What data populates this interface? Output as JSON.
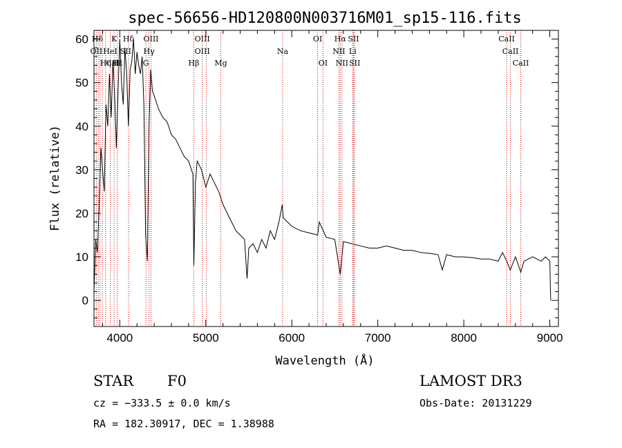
{
  "chart_data": {
    "type": "line",
    "title": "spec-56656-HD120800N003716M01_sp15-116.fits",
    "xlabel": "Wavelength (Å)",
    "ylabel": "Flux (relative)",
    "xlim": [
      3700,
      9100
    ],
    "ylim": [
      -6,
      62
    ],
    "x_ticks": [
      4000,
      5000,
      6000,
      7000,
      8000,
      9000
    ],
    "y_ticks": [
      0,
      10,
      20,
      30,
      40,
      50,
      60
    ],
    "grid": false,
    "line_color": "#000000",
    "marker_color": "#cc0000",
    "series": [
      {
        "x": [
          3700,
          3720,
          3740,
          3760,
          3780,
          3800,
          3820,
          3840,
          3860,
          3880,
          3900,
          3920,
          3940,
          3960,
          3980,
          4000,
          4020,
          4040,
          4060,
          4080,
          4100,
          4120,
          4140,
          4160,
          4180,
          4200,
          4220,
          4240,
          4260,
          4280,
          4300,
          4320,
          4340,
          4360,
          4380,
          4400,
          4450,
          4500,
          4550,
          4600,
          4650,
          4700,
          4750,
          4800,
          4850,
          4861,
          4880,
          4900,
          4950,
          5000,
          5050,
          5100,
          5150,
          5200,
          5250,
          5300,
          5350,
          5400,
          5450,
          5480,
          5500,
          5550,
          5600,
          5650,
          5700,
          5750,
          5800,
          5850,
          5890,
          5900,
          5950,
          6000,
          6100,
          6200,
          6300,
          6320,
          6400,
          6500,
          6563,
          6600,
          6700,
          6800,
          6900,
          7000,
          7100,
          7200,
          7300,
          7400,
          7500,
          7600,
          7700,
          7750,
          7800,
          7900,
          8000,
          8100,
          8200,
          8300,
          8400,
          8450,
          8500,
          8540,
          8600,
          8662,
          8700,
          8800,
          8900,
          8950,
          9000,
          9010
        ],
        "y": [
          2,
          14,
          11,
          22,
          35,
          30,
          25,
          45,
          40,
          52,
          42,
          55,
          47,
          35,
          48,
          60,
          50,
          45,
          58,
          52,
          40,
          53,
          55,
          60,
          52,
          57,
          54,
          52,
          56,
          45,
          15,
          9,
          40,
          53,
          48,
          47,
          44,
          42,
          41,
          38,
          37,
          35,
          33,
          32,
          29,
          8,
          27,
          32,
          30,
          26,
          29,
          27,
          25,
          22,
          20,
          18,
          16,
          15,
          14,
          5,
          12,
          13,
          11,
          14,
          12,
          16,
          14,
          18,
          22,
          19,
          18,
          17,
          16,
          15.5,
          15,
          18,
          14.5,
          14,
          6,
          13.5,
          13,
          12.5,
          12,
          12,
          12.5,
          12,
          11.5,
          11.5,
          11,
          10.8,
          10.5,
          7,
          10.5,
          10,
          10,
          9.8,
          9.5,
          9.5,
          9,
          11,
          9,
          7,
          10,
          6.5,
          9,
          10,
          9,
          10,
          9,
          0
        ]
      }
    ],
    "line_markers": [
      {
        "label": "Hδ",
        "x": 3740,
        "row": 0
      },
      {
        "label": "K",
        "x": 3934,
        "row": 0
      },
      {
        "label": "Hδ",
        "x": 4102,
        "row": 0
      },
      {
        "label": "OIII",
        "x": 4363,
        "row": 0
      },
      {
        "label": "OIII",
        "x": 4959,
        "row": 0
      },
      {
        "label": "OI",
        "x": 6300,
        "row": 0
      },
      {
        "label": "Hα",
        "x": 6563,
        "row": 0
      },
      {
        "label": "SII",
        "x": 6717,
        "row": 0
      },
      {
        "label": "CaII",
        "x": 8498,
        "row": 0
      },
      {
        "label": "OII",
        "x": 3727,
        "row": 1
      },
      {
        "label": "HeI",
        "x": 3889,
        "row": 1
      },
      {
        "label": "SII",
        "x": 4069,
        "row": 1
      },
      {
        "label": "Hγ",
        "x": 4340,
        "row": 1
      },
      {
        "label": "OIII",
        "x": 4959,
        "row": 1
      },
      {
        "label": "Na",
        "x": 5893,
        "row": 1
      },
      {
        "label": "NII",
        "x": 6548,
        "row": 1
      },
      {
        "label": "Li",
        "x": 6708,
        "row": 1
      },
      {
        "label": "CaII",
        "x": 8542,
        "row": 1
      },
      {
        "label": "CaII",
        "x": 3934,
        "row": 2
      },
      {
        "label": "Hε",
        "x": 3970,
        "row": 2
      },
      {
        "label": "Hη",
        "x": 3835,
        "row": 2
      },
      {
        "label": "H",
        "x": 3970,
        "row": 2
      },
      {
        "label": "G",
        "x": 4304,
        "row": 2
      },
      {
        "label": "Hβ",
        "x": 4861,
        "row": 2
      },
      {
        "label": "Mg",
        "x": 5175,
        "row": 2
      },
      {
        "label": "OI",
        "x": 6363,
        "row": 2
      },
      {
        "label": "NII",
        "x": 6583,
        "row": 2
      },
      {
        "label": "SII",
        "x": 6731,
        "row": 2
      },
      {
        "label": "CaII",
        "x": 8662,
        "row": 2
      }
    ],
    "marker_lines": [
      3727,
      3750,
      3770,
      3797,
      3835,
      3889,
      3934,
      3970,
      4102,
      4304,
      4340,
      4363,
      4861,
      4959,
      5007,
      5175,
      5893,
      6300,
      6363,
      6548,
      6563,
      6583,
      6708,
      6717,
      6731,
      8498,
      8542,
      8662
    ]
  },
  "info": {
    "object_class": "STAR",
    "subclass": "F0",
    "survey": "LAMOST DR3",
    "cz": "cz = −333.5 ± 0.0 km/s",
    "obs_date": "Obs-Date: 20131229",
    "radec": "RA = 182.30917, DEC =   1.38988"
  }
}
